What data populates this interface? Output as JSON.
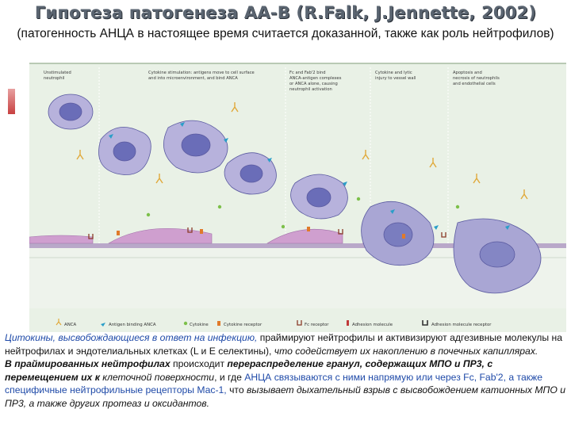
{
  "title": "Гипотеза патогенеза АА-В (R.Falk, J.Jennette, 2002)",
  "subtitle": "(патогенность АНЦА в настоящее время считается доказанной, также как роль нейтрофилов)",
  "diagram": {
    "stages": [
      "Unstimulated neutrophil",
      "Cytokine stimulation: antigens move to cell surface and into microenvironment, and bind ANCA",
      "Fc and Fab'2 bind ANCA-antigen complexes or ANCA alone, causing neutrophil activation",
      "Cytokine and lytic injury to vessel wall",
      "Apoptosis and necrosis of neutrophils and endothelial cells"
    ],
    "legend": [
      "ANCA",
      "Antigen binding ANCA",
      "Cytokine",
      "Cytokine receptor",
      "Fc receptor",
      "Adhesion molecule",
      "Adhesion molecule receptor"
    ],
    "colors": {
      "panel_bg": "#e9f1e6",
      "cell": "#b7b2dc",
      "nucleus": "#6a6db8",
      "endothelium": "#cf9fcf",
      "anca": "#e0a93a",
      "antigen": "#2a9ec8",
      "cytokine": "#7cc04a",
      "receptor": "#e07a2a"
    }
  },
  "text": {
    "p1_a": "Цитокины, высвобождающиеся в ответ на инфекцию,",
    "p1_b": " праймируют нейтрофилы и активизируют адгезивные молекулы на нейтрофилах и эндотелиальных клетках (L и E селектины),",
    "p1_c": " что содействует их накоплению в почечных капиллярах.",
    "p2_a": "В праймированных  нейтрофилах",
    "p2_b": " происходит ",
    "p2_c": "перераспределение гранул, содержащих МПО и ПР3, с перемещением их к",
    "p2_d": " клеточной поверхности",
    "p2_e": ", и где ",
    "p2_f": "АНЦА связываются с ними напрямую или через Fc, Fab'2, а также специфичные нейтрофильные рецепторы Mac-1,",
    "p2_g": " что ",
    "p2_h": "вызывает дыхательный взрыв с высвобождением катионных МПО и ПР3, а также других протеаз и оксидантов."
  }
}
